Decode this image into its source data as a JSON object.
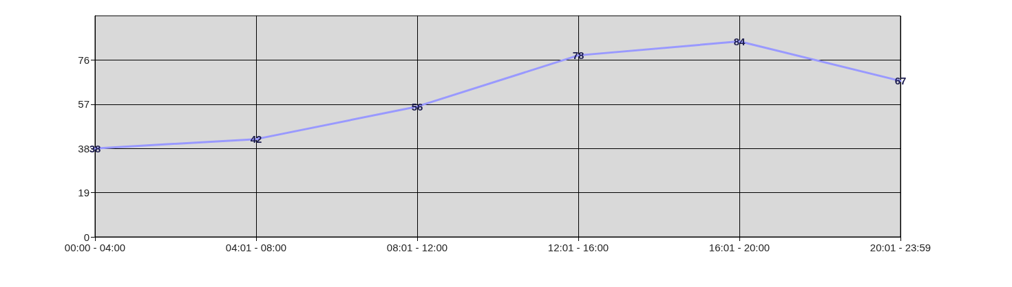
{
  "chart_data": {
    "type": "line",
    "categories": [
      "00:00 - 04:00",
      "04:01 - 08:00",
      "08:01 - 12:00",
      "12:01 - 16:00",
      "16:01 - 20:00",
      "20:01 - 23:59"
    ],
    "series": [
      {
        "color": "#9999ff",
        "values": [
          38,
          42,
          56,
          78,
          84,
          67
        ]
      }
    ],
    "ylim": [
      0,
      95
    ],
    "yticks": [
      0,
      19,
      38,
      57,
      76
    ],
    "grid": true,
    "data_labels": true,
    "marker": "none"
  }
}
